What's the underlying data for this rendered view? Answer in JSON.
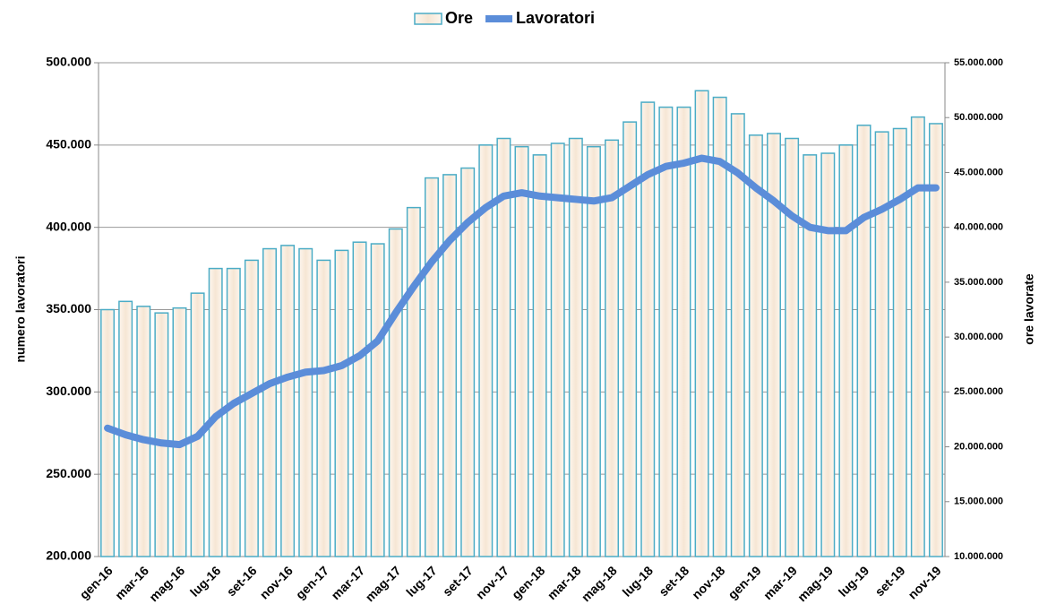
{
  "chart_data": {
    "type": "bar-line",
    "y_label": "numero lavoratori",
    "y2_label": "ore lavorate",
    "categories": [
      "gen-16",
      null,
      "mar-16",
      null,
      "mag-16",
      null,
      "lug-16",
      null,
      "set-16",
      null,
      "nov-16",
      null,
      "gen-17",
      null,
      "mar-17",
      null,
      "mag-17",
      null,
      "lug-17",
      null,
      "set-17",
      null,
      "nov-17",
      null,
      "gen-18",
      null,
      "mar-18",
      null,
      "mag-18",
      null,
      "lug-18",
      null,
      "set-18",
      null,
      "nov-18",
      null,
      "gen-19",
      null,
      "mar-19",
      null,
      "mag-19",
      null,
      "lug-19",
      null,
      "set-19",
      null,
      "nov-19"
    ],
    "series": [
      {
        "name": "Ore",
        "kind": "bar",
        "axis": "y2",
        "color": "#fbeee0",
        "edge": "#4bacc6",
        "values": [
          32500000,
          33250000,
          32800000,
          32200000,
          32650000,
          34000000,
          36250000,
          36250000,
          37000000,
          38050000,
          38350000,
          38050000,
          37000000,
          37900000,
          38650000,
          38500000,
          39850000,
          41800000,
          44500000,
          44800000,
          45400000,
          47500000,
          48100000,
          47350000,
          46600000,
          47650000,
          48100000,
          47350000,
          47950000,
          49600000,
          51400000,
          50950000,
          50950000,
          52450000,
          51850000,
          50350000,
          48400000,
          48550000,
          48100000,
          46600000,
          46750000,
          47500000,
          49300000,
          48700000,
          49000000,
          50050000,
          49450000
        ]
      },
      {
        "name": "Lavoratori",
        "kind": "line",
        "axis": "y",
        "color": "#5b8dd9",
        "values": [
          278000,
          274000,
          271000,
          269000,
          268000,
          273000,
          285000,
          293000,
          299000,
          305000,
          309000,
          312000,
          313000,
          316000,
          322000,
          331000,
          348000,
          364000,
          379000,
          392000,
          403000,
          412000,
          419000,
          421000,
          419000,
          418000,
          417000,
          416000,
          418000,
          425000,
          432000,
          437000,
          439000,
          442000,
          440000,
          433000,
          424000,
          416000,
          407000,
          400000,
          398000,
          398000,
          406000,
          411000,
          417000,
          424000,
          424000
        ]
      }
    ],
    "ylim": [
      200000,
      500000
    ],
    "yticks": [
      {
        "value": 200000,
        "label": "200.000"
      },
      {
        "value": 250000,
        "label": "250.000"
      },
      {
        "value": 300000,
        "label": "300.000"
      },
      {
        "value": 350000,
        "label": "350.000"
      },
      {
        "value": 400000,
        "label": "400.000"
      },
      {
        "value": 450000,
        "label": "450.000"
      },
      {
        "value": 500000,
        "label": "500.000"
      }
    ],
    "y2lim": [
      10000000,
      55000000
    ],
    "y2ticks": [
      {
        "value": 10000000,
        "label": "10.000.000"
      },
      {
        "value": 15000000,
        "label": "15.000.000"
      },
      {
        "value": 20000000,
        "label": "20.000.000"
      },
      {
        "value": 25000000,
        "label": "25.000.000"
      },
      {
        "value": 30000000,
        "label": "30.000.000"
      },
      {
        "value": 35000000,
        "label": "35.000.000"
      },
      {
        "value": 40000000,
        "label": "40.000.000"
      },
      {
        "value": 45000000,
        "label": "45.000.000"
      },
      {
        "value": 50000000,
        "label": "50.000.000"
      },
      {
        "value": 55000000,
        "label": "55.000.000"
      }
    ],
    "grid": true,
    "legend": "top"
  }
}
